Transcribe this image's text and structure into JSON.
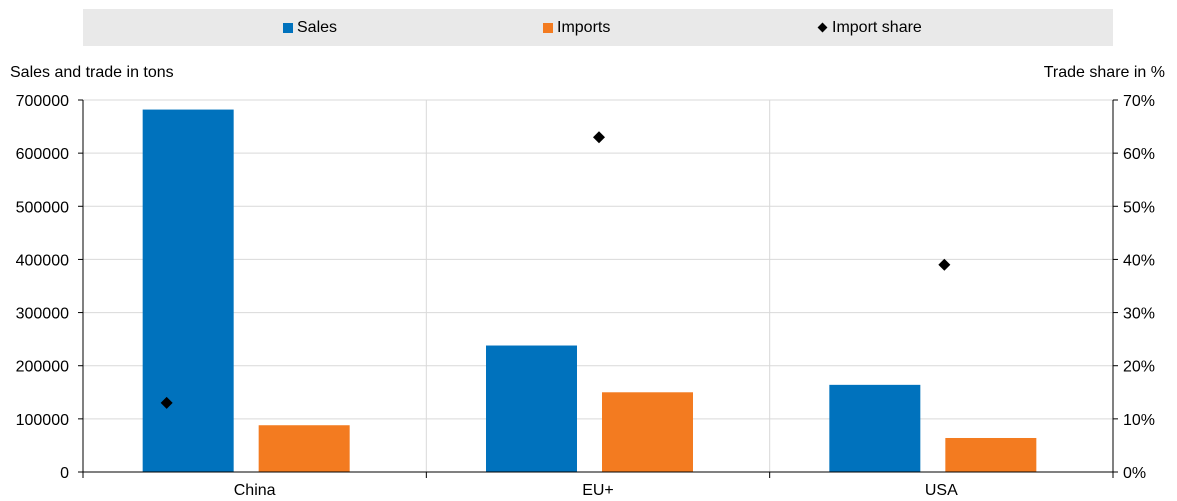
{
  "chart_data": {
    "type": "bar",
    "categories": [
      "China",
      "EU+",
      "USA"
    ],
    "series": [
      {
        "name": "Sales",
        "axis": "left",
        "kind": "bar",
        "color": "#0072bd",
        "values": [
          682000,
          238000,
          164000
        ]
      },
      {
        "name": "Imports",
        "axis": "left",
        "kind": "bar",
        "color": "#f37b20",
        "values": [
          88000,
          150000,
          64000
        ]
      },
      {
        "name": "Import share",
        "axis": "right",
        "kind": "marker",
        "marker": "diamond",
        "color": "#000000",
        "values": [
          13,
          63,
          39
        ]
      }
    ],
    "ylabel": "Sales and trade in tons",
    "y2label": "Trade share in %",
    "ylim": [
      0,
      700000
    ],
    "y2lim": [
      0,
      70
    ],
    "yticks": [
      "0",
      "100000",
      "200000",
      "300000",
      "400000",
      "500000",
      "600000",
      "700000"
    ],
    "y2ticks": [
      "0%",
      "10%",
      "20%",
      "30%",
      "40%",
      "50%",
      "60%",
      "70%"
    ],
    "grid": "horizontal",
    "legend_position": "top"
  }
}
